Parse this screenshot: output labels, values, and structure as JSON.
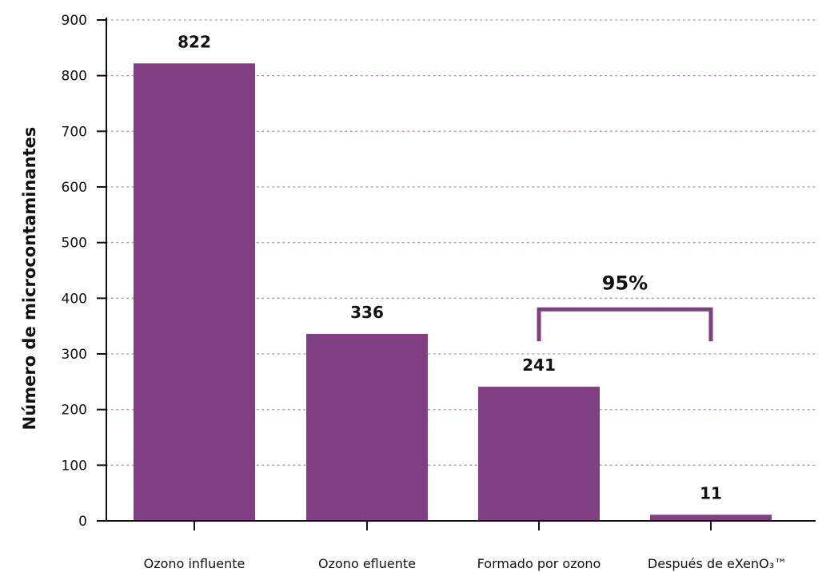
{
  "chart_data": {
    "type": "bar",
    "categories": [
      "Ozono influente",
      "Ozono efluente",
      "Formado por ozono",
      "Después de eXenO₃™"
    ],
    "values": [
      822,
      336,
      241,
      11
    ],
    "value_labels": [
      "822",
      "336",
      "241",
      "11"
    ],
    "title": "",
    "xlabel": "",
    "ylabel": "Número de microcontaminantes",
    "ylim": [
      0,
      900
    ],
    "yticks": [
      0,
      100,
      200,
      300,
      400,
      500,
      600,
      700,
      800,
      900
    ],
    "ytick_labels": [
      "0",
      "100",
      "200",
      "300",
      "400",
      "500",
      "600",
      "700",
      "800",
      "900"
    ],
    "grid": "horizontal dotted",
    "legend": "none",
    "annotations": [
      {
        "text": "95%",
        "type": "bracket",
        "from_category": "Formado por ozono",
        "to_category": "Después de eXenO₃™",
        "y_value": 380
      }
    ],
    "colors": {
      "bar": "#7f3f82",
      "bracket": "#7f3f82",
      "grid": "#c897b8",
      "axis": "#111111"
    }
  }
}
